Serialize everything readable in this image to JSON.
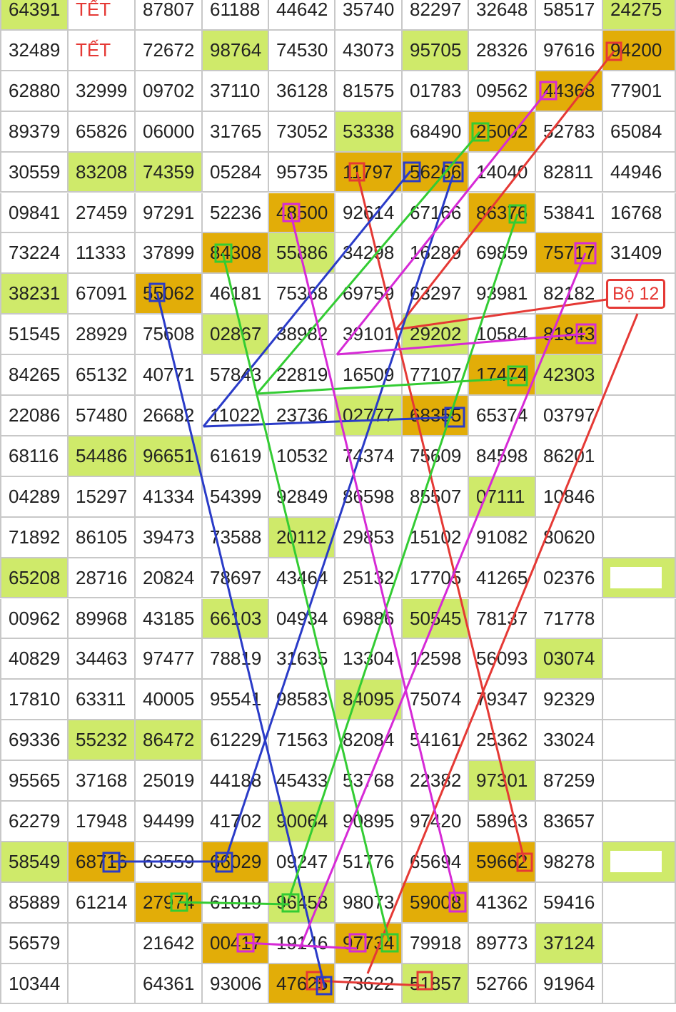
{
  "grid": {
    "colors": {
      "g": "#cfea6a",
      "o": "#e2ad08",
      "r": "#e53935"
    },
    "rows": [
      [
        {
          "text": "64391",
          "fill": "g"
        },
        {
          "text": "TẾT",
          "ink": "r"
        },
        "87807",
        "61188",
        "44642",
        "35740",
        "82297",
        "32648",
        "58517",
        {
          "text": "24275",
          "fill": "g"
        }
      ],
      [
        "32489",
        {
          "text": "TẾT",
          "ink": "r"
        },
        "72672",
        {
          "text": "98764",
          "fill": "g"
        },
        "74530",
        "43073",
        {
          "text": "95705",
          "fill": "g"
        },
        "28326",
        "97616",
        {
          "text": "94200",
          "fill": "o"
        }
      ],
      [
        "62880",
        "32999",
        "09702",
        "37110",
        "36128",
        "81575",
        "01783",
        "09562",
        {
          "text": "44368",
          "fill": "o"
        },
        "77901"
      ],
      [
        "89379",
        "65826",
        "06000",
        "31765",
        "73052",
        {
          "text": "53338",
          "fill": "g"
        },
        "68490",
        {
          "text": "25002",
          "fill": "o"
        },
        "52783",
        "65084"
      ],
      [
        "30559",
        {
          "text": "83208",
          "fill": "g"
        },
        {
          "text": "74359",
          "fill": "g"
        },
        "05284",
        "95735",
        {
          "text": "11797",
          "fill": "o"
        },
        {
          "text": "56266",
          "fill": "o"
        },
        "14040",
        "82811",
        "44946"
      ],
      [
        "09841",
        "27459",
        "97291",
        "52236",
        {
          "text": "48500",
          "fill": "o"
        },
        "92614",
        "67166",
        {
          "text": "86376",
          "fill": "o"
        },
        "53841",
        "16768"
      ],
      [
        "73224",
        "11333",
        "37899",
        {
          "text": "84308",
          "fill": "o"
        },
        {
          "text": "55886",
          "fill": "g"
        },
        "34298",
        "16289",
        "69859",
        {
          "text": "75717",
          "fill": "o"
        },
        "31409"
      ],
      [
        {
          "text": "38231",
          "fill": "g"
        },
        "67091",
        {
          "text": "55062",
          "fill": "o"
        },
        "46181",
        "75368",
        "69759",
        "63297",
        "93981",
        "82182",
        {
          "text": "Bộ 12",
          "tag": "r"
        }
      ],
      [
        "51545",
        "28929",
        "75608",
        {
          "text": "02867",
          "fill": "g"
        },
        "38982",
        "39101",
        {
          "text": "29202",
          "fill": "g"
        },
        "10584",
        {
          "text": "81843",
          "fill": "o"
        },
        null
      ],
      [
        "84265",
        "65132",
        "40771",
        "57843",
        "22819",
        "16509",
        "77107",
        {
          "text": "17474",
          "fill": "o"
        },
        {
          "text": "42303",
          "fill": "g"
        },
        null
      ],
      [
        "22086",
        "57480",
        "26682",
        "11022",
        "23736",
        {
          "text": "02777",
          "fill": "g"
        },
        {
          "text": "68355",
          "fill": "o"
        },
        "65374",
        "03797",
        null
      ],
      [
        "68116",
        {
          "text": "54486",
          "fill": "g"
        },
        {
          "text": "96651",
          "fill": "g"
        },
        "61619",
        "10532",
        "74374",
        "75609",
        "84598",
        "86201",
        null
      ],
      [
        "04289",
        "15297",
        "41334",
        "54399",
        "92849",
        "86598",
        "85507",
        {
          "text": "07111",
          "fill": "g"
        },
        "10846",
        null
      ],
      [
        "71892",
        "86105",
        "39473",
        "73588",
        {
          "text": "20112",
          "fill": "g"
        },
        "29853",
        "15102",
        "91082",
        "80620",
        null
      ],
      [
        {
          "text": "65208",
          "fill": "g"
        },
        "28716",
        "20824",
        "78697",
        "43464",
        "25132",
        "17705",
        "41265",
        "02376",
        {
          "fill": "g",
          "inset": "#ffffff"
        }
      ],
      [
        "00962",
        "89968",
        "43185",
        {
          "text": "66103",
          "fill": "g"
        },
        "04934",
        "69886",
        {
          "text": "50545",
          "fill": "g"
        },
        "78137",
        "71778",
        null
      ],
      [
        "40829",
        "34463",
        "97477",
        "78819",
        "31635",
        "13304",
        "12598",
        "56093",
        {
          "text": "03074",
          "fill": "g"
        },
        null
      ],
      [
        "17810",
        "63311",
        "40005",
        "95541",
        "98583",
        {
          "text": "84095",
          "fill": "g"
        },
        "75074",
        "79347",
        "92329",
        null
      ],
      [
        "69336",
        {
          "text": "55232",
          "fill": "g"
        },
        {
          "text": "86472",
          "fill": "g"
        },
        "61229",
        "71563",
        "82084",
        "54161",
        "25362",
        "33024",
        null
      ],
      [
        "95565",
        "37168",
        "25019",
        "44188",
        "45433",
        "53768",
        "22382",
        {
          "text": "97301",
          "fill": "g"
        },
        "87259",
        null
      ],
      [
        "62279",
        "17948",
        "94499",
        "41702",
        {
          "text": "90064",
          "fill": "g"
        },
        "90895",
        "97420",
        "58963",
        "83657",
        null
      ],
      [
        {
          "text": "58549",
          "fill": "g"
        },
        {
          "text": "68716",
          "fill": "o"
        },
        "63559",
        {
          "text": "66029",
          "fill": "o"
        },
        "09247",
        "51776",
        "65694",
        {
          "text": "59662",
          "fill": "o"
        },
        "98278",
        {
          "fill": "g",
          "inset": "#ffffff"
        }
      ],
      [
        "85889",
        "61214",
        {
          "text": "27974",
          "fill": "o"
        },
        "61019",
        {
          "text": "96458",
          "fill": "g"
        },
        "98073",
        {
          "text": "59008",
          "fill": "o"
        },
        "41362",
        "59416",
        null
      ],
      [
        "56579",
        null,
        "21642",
        {
          "text": "00417",
          "fill": "o"
        },
        "19146",
        {
          "text": "97734",
          "fill": "o"
        },
        "79918",
        "89773",
        {
          "text": "37124",
          "fill": "g"
        },
        null
      ],
      [
        "10344",
        null,
        "64361",
        "93006",
        {
          "text": "47625",
          "fill": "o"
        },
        "73622",
        {
          "text": "51857",
          "fill": "g"
        },
        "52766",
        "91964",
        null
      ]
    ]
  }
}
